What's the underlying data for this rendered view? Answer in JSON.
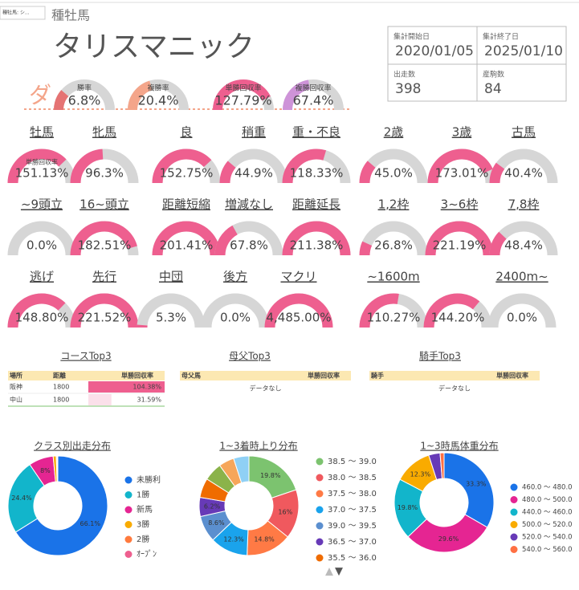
{
  "tab": "種牡馬: シ...",
  "section": "種牡馬",
  "title": "タリスマニック",
  "logo": "ダ",
  "top_gauges": [
    {
      "label": "勝率",
      "value": 6.8,
      "value_label": "6.8%",
      "range": [
        0,
        30
      ],
      "color": "#e57373"
    },
    {
      "label": "複勝率",
      "value": 20.4,
      "value_label": "20.4%",
      "range": [
        0,
        50
      ],
      "color": "#f4a58a"
    },
    {
      "label": "単勝回収率",
      "value": 127.79,
      "value_label": "127.79%",
      "range": [
        0,
        150
      ],
      "color": "#ee5f8f"
    },
    {
      "label": "複勝回収率",
      "value": 67.4,
      "value_label": "67.4%",
      "range": [
        0,
        150
      ],
      "color": "#ce93d8"
    }
  ],
  "stats": [
    {
      "label": "集計開始日",
      "value": "2020/01/05"
    },
    {
      "label": "集計終了日",
      "value": "2025/01/10"
    },
    {
      "label": "出走数",
      "value": 398
    },
    {
      "label": "産駒数",
      "value": 84
    }
  ],
  "gauge_range": [
    0,
    200
  ],
  "gauge_color": "#ee5f8f",
  "gauges": [
    {
      "label": "牡馬",
      "value": 151.13,
      "value_label": "151.13%",
      "sublabel": "単勝回収率"
    },
    {
      "label": "牝馬",
      "value": 96.3,
      "value_label": "96.3%"
    },
    {
      "label": "良",
      "value": 152.75,
      "value_label": "152.75%"
    },
    {
      "label": "稍重",
      "value": 44.9,
      "value_label": "44.9%"
    },
    {
      "label": "重・不良",
      "value": 118.33,
      "value_label": "118.33%"
    },
    {
      "label": "2歳",
      "value": 45.0,
      "value_label": "45.0%"
    },
    {
      "label": "3歳",
      "value": 173.01,
      "value_label": "173.01%"
    },
    {
      "label": "古馬",
      "value": 40.4,
      "value_label": "40.4%"
    },
    {
      "label": "~9頭立",
      "value": 0.0,
      "value_label": "0.0%"
    },
    {
      "label": "16~頭立",
      "value": 182.51,
      "value_label": "182.51%"
    },
    {
      "label": "距離短縮",
      "value": 201.41,
      "value_label": "201.41%"
    },
    {
      "label": "増減なし",
      "value": 67.8,
      "value_label": "67.8%"
    },
    {
      "label": "距離延長",
      "value": 211.38,
      "value_label": "211.38%"
    },
    {
      "label": "1,2枠",
      "value": 26.8,
      "value_label": "26.8%"
    },
    {
      "label": "3~6枠",
      "value": 221.19,
      "value_label": "221.19%"
    },
    {
      "label": "7,8枠",
      "value": 48.4,
      "value_label": "48.4%"
    },
    {
      "label": "逃げ",
      "value": 148.8,
      "value_label": "148.80%"
    },
    {
      "label": "先行",
      "value": 221.52,
      "value_label": "221.52%"
    },
    {
      "label": "中団",
      "value": 5.3,
      "value_label": "5.3%"
    },
    {
      "label": "後方",
      "value": 0.0,
      "value_label": "0.0%"
    },
    {
      "label": "マクリ",
      "value": 4485.0,
      "value_label": "4,485.00%"
    },
    {
      "label": "~1600m",
      "value": 110.27,
      "value_label": "110.27%"
    },
    {
      "label": null,
      "value": 144.2,
      "value_label": "144.20%"
    },
    {
      "label": "2400m~",
      "value": 0.0,
      "value_label": "0.0%"
    }
  ],
  "tables": [
    {
      "title": "コースTop3",
      "headers": [
        "場所",
        "距離",
        "単勝回収率"
      ],
      "rows": [
        {
          "cells": [
            "阪神",
            1800
          ],
          "value": 104.38,
          "value_label": "104.38%"
        },
        {
          "cells": [
            "中山",
            1800
          ],
          "value": 31.59,
          "value_label": "31.59%"
        }
      ]
    },
    {
      "title": "母父Top3",
      "headers": [
        "母父馬",
        "単勝回収率"
      ],
      "empty": "データなし"
    },
    {
      "title": "騎手Top3",
      "headers": [
        "騎手",
        "単勝回収率"
      ],
      "empty": "データなし"
    }
  ],
  "chart_data": [
    {
      "type": "pie",
      "title": "クラス別出走分布",
      "categories": [
        "未勝利",
        "1勝",
        "新馬",
        "3勝",
        "2勝",
        "ｵｰﾌﾟﾝ"
      ],
      "values": [
        66.1,
        24.4,
        8,
        1.0,
        0.3,
        0.2
      ],
      "value_labels": [
        "66.1%",
        "24.4%",
        "8%",
        null,
        null,
        null
      ],
      "colors": [
        "#1a73e8",
        "#12b5cb",
        "#e52592",
        "#f9ab00",
        "#ff7a3d",
        "#ee5f8f"
      ]
    },
    {
      "type": "pie",
      "title": "1~3着時上り分布",
      "categories": [
        "38.5 ～ 39.0",
        "38.0 ～ 38.5",
        "37.5 ～ 38.0",
        "37.0 ～ 37.5",
        "39.0 ～ 39.5",
        "36.5 ～ 37.0",
        "35.5 ～ 36.0",
        null,
        null,
        null
      ],
      "values": [
        19.8,
        16,
        14.8,
        12.3,
        8.6,
        6.2,
        6.3,
        6,
        5,
        5
      ],
      "value_labels": [
        "19.8%",
        "16%",
        "14.8%",
        "12.3%",
        "8.6%",
        "6.2%",
        null,
        null,
        null,
        null
      ],
      "colors": [
        "#7cc36f",
        "#f0595e",
        "#ff7a45",
        "#1aa3ec",
        "#5b8fcf",
        "#673ab7",
        "#ef6c00",
        "#8bb34a",
        "#f6a65a",
        "#8fd0f5"
      ]
    },
    {
      "type": "pie",
      "title": "1~3時馬体重分布",
      "categories": [
        "460.0 ～ 480.0",
        "480.0 ～ 500.0",
        "440.0 ～ 460.0",
        "500.0 ～ 520.0",
        "520.0 ～ 540.0",
        "540.0 ～ 560.0"
      ],
      "values": [
        33.3,
        29.6,
        19.8,
        12.3,
        3.7,
        1.3
      ],
      "value_labels": [
        "33.3%",
        "29.6%",
        "19.8%",
        "12.3%",
        null,
        null
      ],
      "colors": [
        "#1a73e8",
        "#e52592",
        "#12b5cb",
        "#f9ab00",
        "#673ab7",
        "#ff7043"
      ]
    }
  ]
}
